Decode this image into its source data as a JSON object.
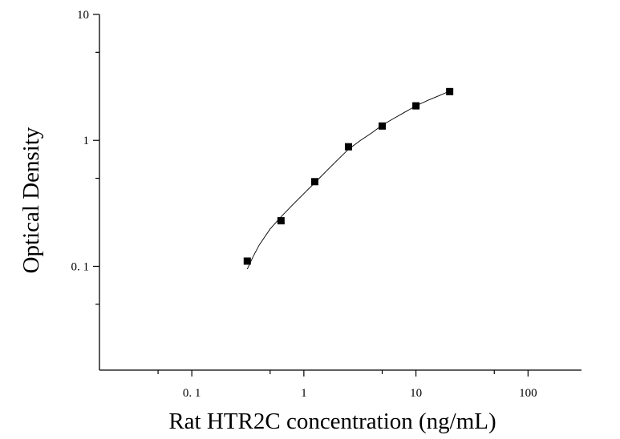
{
  "chart_data": {
    "type": "scatter",
    "title": "",
    "xlabel": "Rat HTR2C concentration (ng/mL)",
    "ylabel": "Optical Density",
    "x_scale": "log",
    "y_scale": "log",
    "xlim": [
      0.015,
      300
    ],
    "ylim": [
      0.015,
      10
    ],
    "x_ticks": [
      {
        "value": 0.1,
        "label": "0. 1"
      },
      {
        "value": 1,
        "label": "1"
      },
      {
        "value": 10,
        "label": "10"
      },
      {
        "value": 100,
        "label": "100"
      }
    ],
    "y_ticks": [
      {
        "value": 0.1,
        "label": "0. 1"
      },
      {
        "value": 1,
        "label": "1"
      },
      {
        "value": 10,
        "label": "10"
      }
    ],
    "grid": false,
    "legend": "none",
    "marker_color": "#000000",
    "series": [
      {
        "marker": "square",
        "x": [
          0.3125,
          0.625,
          1.25,
          2.5,
          5,
          10,
          20
        ],
        "y": [
          0.11,
          0.23,
          0.47,
          0.89,
          1.3,
          1.88,
          2.44
        ]
      }
    ],
    "fit_curve": {
      "x": [
        0.3125,
        0.35,
        0.4,
        0.5,
        0.625,
        0.8,
        1.0,
        1.25,
        1.6,
        2.0,
        2.5,
        3.2,
        4.0,
        5.0,
        6.4,
        8.0,
        10,
        12.8,
        16,
        20
      ],
      "y": [
        0.095,
        0.118,
        0.148,
        0.198,
        0.247,
        0.31,
        0.378,
        0.46,
        0.575,
        0.7,
        0.85,
        1.0,
        1.14,
        1.32,
        1.5,
        1.68,
        1.88,
        2.08,
        2.26,
        2.46
      ]
    }
  }
}
